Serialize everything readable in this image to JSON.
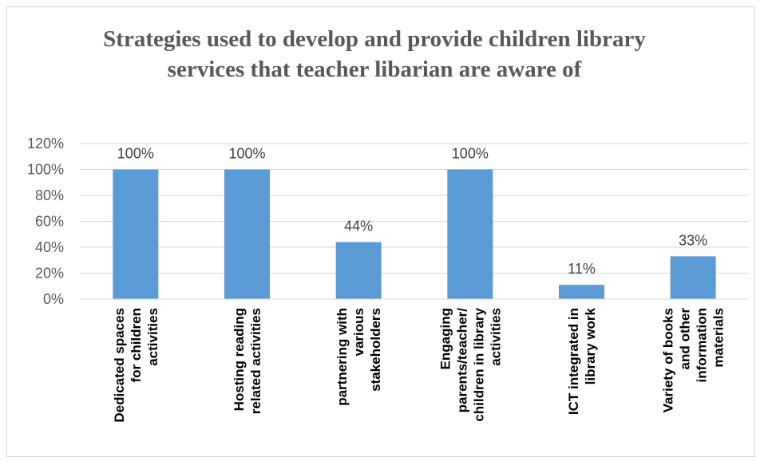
{
  "chart_data": {
    "type": "bar",
    "title": "Strategies used to develop and provide children library services that teacher libarian are aware of",
    "title_lines": [
      "Strategies used to develop and provide children library",
      "services that teacher libarian are aware of"
    ],
    "categories": [
      "Dedicated spaces for children activities",
      "Hosting reading related activities",
      "partnering with various stakeholders",
      "Engaging parents/teacher/ children in library activities",
      "ICT integrated in library work",
      "Variety of books and other information materials"
    ],
    "category_lines": [
      [
        "Dedicated spaces",
        "for children",
        "activities"
      ],
      [
        "Hosting reading",
        "related activities"
      ],
      [
        "partnering with",
        "various",
        "stakeholders"
      ],
      [
        "Engaging",
        "parents/teacher/",
        "children in library",
        "activities"
      ],
      [
        "ICT integrated in",
        "library work"
      ],
      [
        "Variety of books",
        "and other",
        "information",
        "materials"
      ]
    ],
    "values": [
      100,
      100,
      44,
      100,
      11,
      33
    ],
    "data_labels": [
      "100%",
      "100%",
      "44%",
      "100%",
      "11%",
      "33%"
    ],
    "ylim": [
      0,
      120
    ],
    "yticks": [
      "0%",
      "20%",
      "40%",
      "60%",
      "80%",
      "100%",
      "120%"
    ],
    "xlabel": "",
    "ylabel": "",
    "grid": true,
    "legend": "none",
    "bar_color": "#5b9bd5",
    "grid_color": "#d9d9d9"
  }
}
